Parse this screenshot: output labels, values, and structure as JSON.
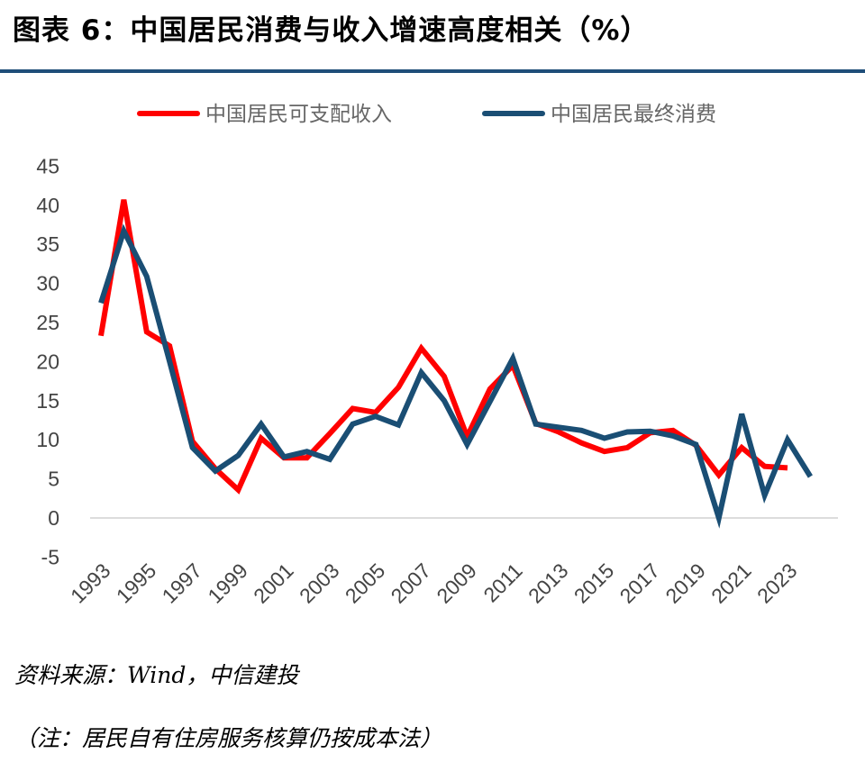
{
  "title": "图表 6：中国居民消费与收入增速高度相关（%）",
  "source": "资料来源：Wind，中信建投",
  "note": "（注：居民自有住房服务核算仍按成本法）",
  "chart_data": {
    "type": "line",
    "xlabel": "",
    "ylabel": "",
    "ylim": [
      -5,
      45
    ],
    "yticks": [
      45,
      40,
      35,
      30,
      25,
      20,
      15,
      10,
      5,
      0,
      -5
    ],
    "xtick_labels": [
      "1993",
      "1995",
      "1997",
      "1999",
      "2001",
      "2003",
      "2005",
      "2007",
      "2009",
      "2011",
      "2013",
      "2015",
      "2017",
      "2019",
      "2021",
      "2023"
    ],
    "legend_position": "top",
    "grid": false,
    "series": [
      {
        "name": "中国居民可支配收入",
        "color": "#ff0000",
        "x": [
          1993,
          1994,
          1995,
          1996,
          1997,
          1998,
          1999,
          2000,
          2001,
          2002,
          2003,
          2004,
          2005,
          2006,
          2007,
          2008,
          2009,
          2010,
          2011,
          2012,
          2013,
          2014,
          2015,
          2016,
          2017,
          2018,
          2019,
          2020,
          2021,
          2022,
          2023
        ],
        "values": [
          23.3,
          40.7,
          23.8,
          22.0,
          9.8,
          6.3,
          3.6,
          10.2,
          7.7,
          7.7,
          10.8,
          14.0,
          13.5,
          16.7,
          21.7,
          18.1,
          10.4,
          16.5,
          19.5,
          12.1,
          11.0,
          9.6,
          8.5,
          9.0,
          10.9,
          11.2,
          9.3,
          5.5,
          9.0,
          6.6,
          6.4
        ]
      },
      {
        "name": "中国居民最终消费",
        "color": "#1a4e74",
        "x": [
          1993,
          1994,
          1995,
          1996,
          1997,
          1998,
          1999,
          2000,
          2001,
          2002,
          2003,
          2004,
          2005,
          2006,
          2007,
          2008,
          2009,
          2010,
          2011,
          2012,
          2013,
          2014,
          2015,
          2016,
          2017,
          2018,
          2019,
          2020,
          2021,
          2022,
          2023,
          2024
        ],
        "values": [
          27.5,
          36.7,
          30.9,
          20.0,
          9.0,
          6.0,
          8.0,
          12.0,
          7.8,
          8.5,
          7.5,
          12.0,
          13.0,
          11.9,
          18.6,
          15.0,
          9.4,
          14.9,
          20.4,
          12.0,
          11.6,
          11.2,
          10.2,
          11.0,
          11.1,
          10.5,
          9.4,
          0.0,
          13.3,
          2.9,
          10.0,
          5.3
        ]
      }
    ]
  }
}
